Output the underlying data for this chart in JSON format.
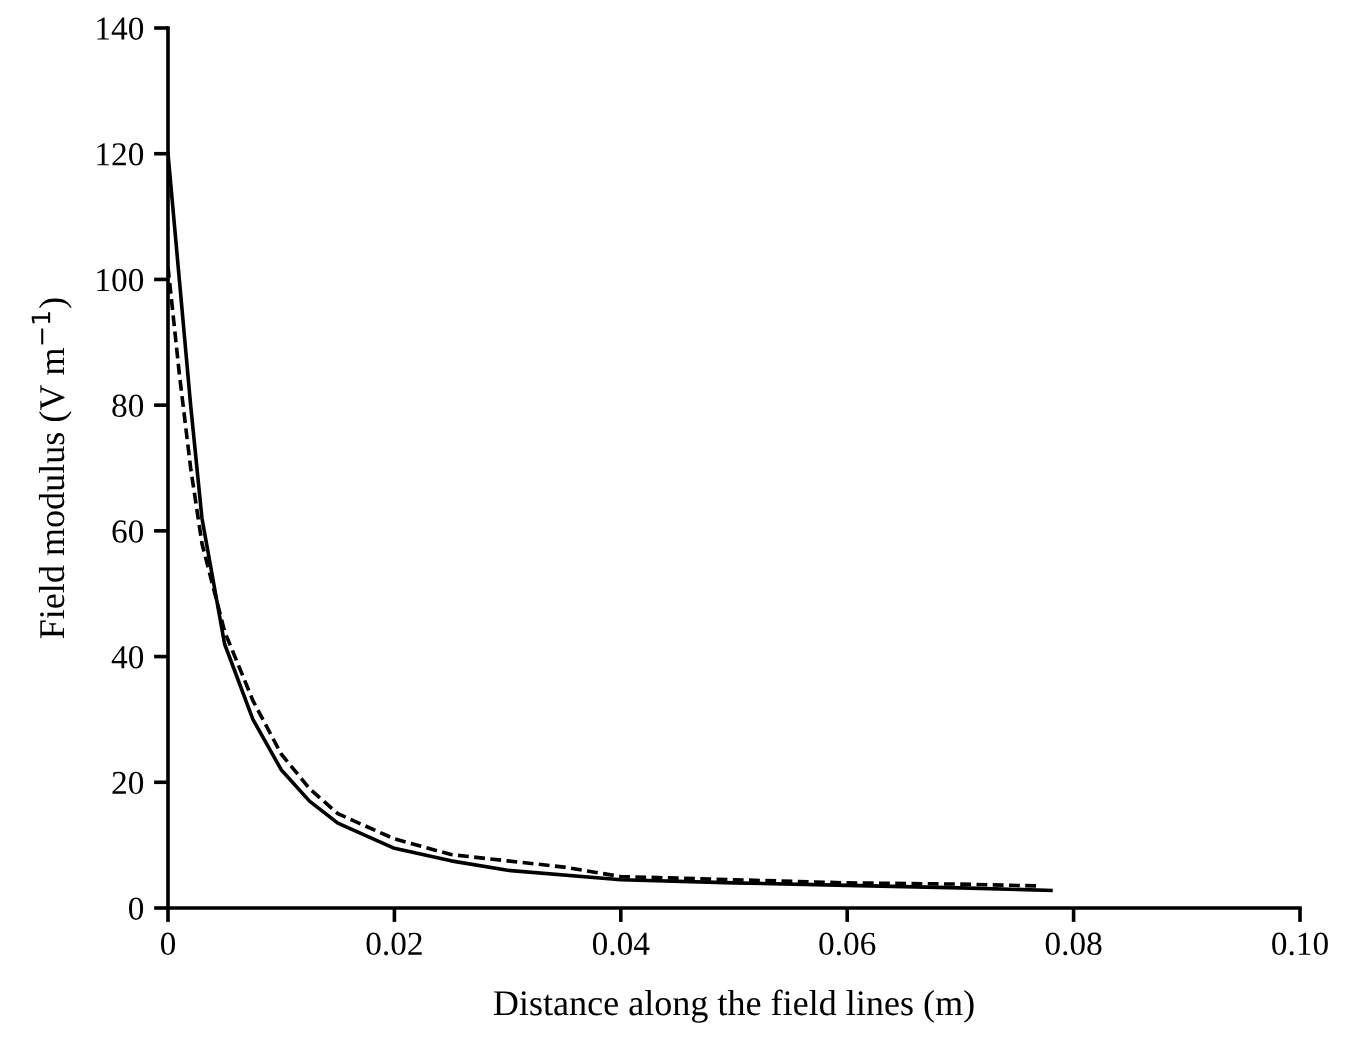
{
  "chart_data": {
    "type": "line",
    "xlabel": "Distance along the field lines (m)",
    "ylabel": "Field modulus (V m$^{−1}$)",
    "xlim": [
      0,
      0.1
    ],
    "ylim": [
      0,
      140
    ],
    "xticks": [
      0,
      0.02,
      0.04,
      0.06,
      0.08,
      {
        "value": 0.1,
        "label": "0.10"
      }
    ],
    "yticks": [
      0,
      20,
      40,
      60,
      80,
      100,
      120,
      140
    ],
    "grid": false,
    "legend": false,
    "marker": "none",
    "series": [
      {
        "color": "#000000",
        "line_style": "solid",
        "x": [
          0,
          0.001,
          0.002,
          0.003,
          0.005,
          0.0075,
          0.01,
          0.0125,
          0.015,
          0.02,
          0.025,
          0.03,
          0.04,
          0.05,
          0.06,
          0.07,
          0.078
        ],
        "values": [
          120,
          100,
          80,
          62,
          42,
          30,
          22,
          17,
          13.5,
          9.5,
          7.5,
          6,
          4.5,
          4,
          3.6,
          3.2,
          2.8
        ]
      },
      {
        "color": "#000000",
        "line_style": "dashed",
        "x": [
          0,
          0.001,
          0.002,
          0.003,
          0.005,
          0.0075,
          0.01,
          0.0125,
          0.015,
          0.02,
          0.025,
          0.03,
          0.035,
          0.04,
          0.05,
          0.06,
          0.07,
          0.077
        ],
        "values": [
          102,
          85,
          70,
          58,
          44,
          33,
          24.5,
          19,
          15,
          11,
          8.5,
          7.5,
          6.5,
          5,
          4.5,
          4,
          3.8,
          3.5
        ]
      }
    ]
  }
}
